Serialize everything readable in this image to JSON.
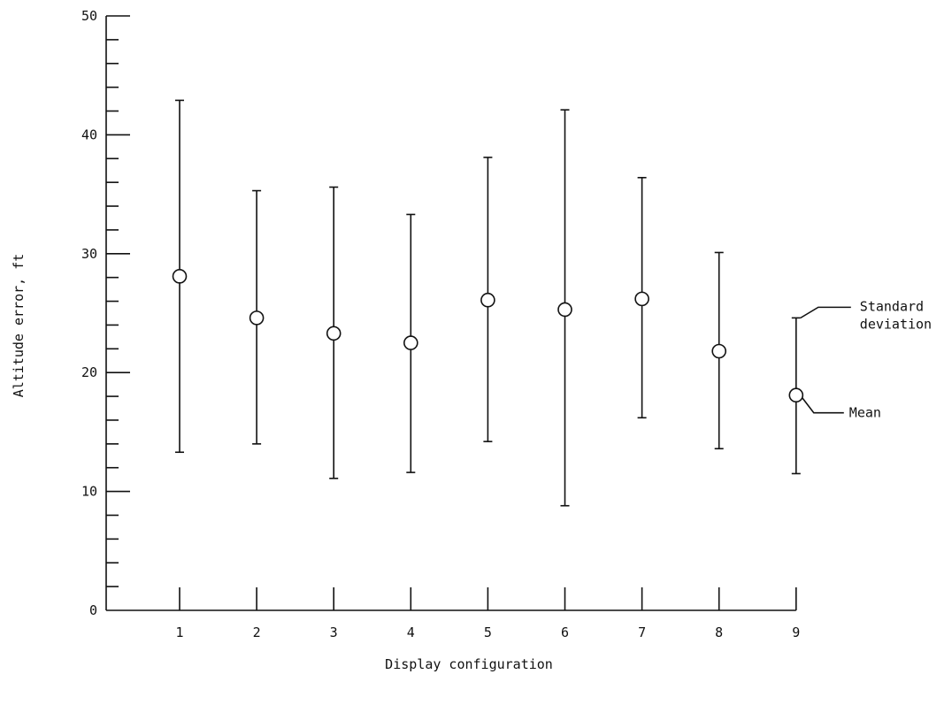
{
  "chart_data": {
    "type": "scatter",
    "title": "",
    "xlabel": "Display configuration",
    "ylabel": "Altitude error, ft",
    "ylim": [
      0,
      50
    ],
    "x_ticks": [
      "1",
      "2",
      "3",
      "4",
      "5",
      "6",
      "7",
      "8",
      "9"
    ],
    "y_ticks": [
      "0",
      "10",
      "20",
      "30",
      "40",
      "50"
    ],
    "grid": false,
    "points": [
      {
        "x": 1,
        "mean": 28.1,
        "upper": 42.9,
        "lower": 13.3
      },
      {
        "x": 2,
        "mean": 24.6,
        "upper": 35.3,
        "lower": 14.0
      },
      {
        "x": 3,
        "mean": 23.3,
        "upper": 35.6,
        "lower": 11.1
      },
      {
        "x": 4,
        "mean": 22.5,
        "upper": 33.3,
        "lower": 11.6
      },
      {
        "x": 5,
        "mean": 26.1,
        "upper": 38.1,
        "lower": 14.2
      },
      {
        "x": 6,
        "mean": 25.3,
        "upper": 42.1,
        "lower": 8.8
      },
      {
        "x": 7,
        "mean": 26.2,
        "upper": 36.4,
        "lower": 16.2
      },
      {
        "x": 8,
        "mean": 21.8,
        "upper": 30.1,
        "lower": 13.6
      },
      {
        "x": 9,
        "mean": 18.1,
        "upper": 24.6,
        "lower": 11.5
      }
    ],
    "annotations": {
      "std_line1": "Standard",
      "std_line2": "deviation",
      "mean": "Mean"
    }
  }
}
